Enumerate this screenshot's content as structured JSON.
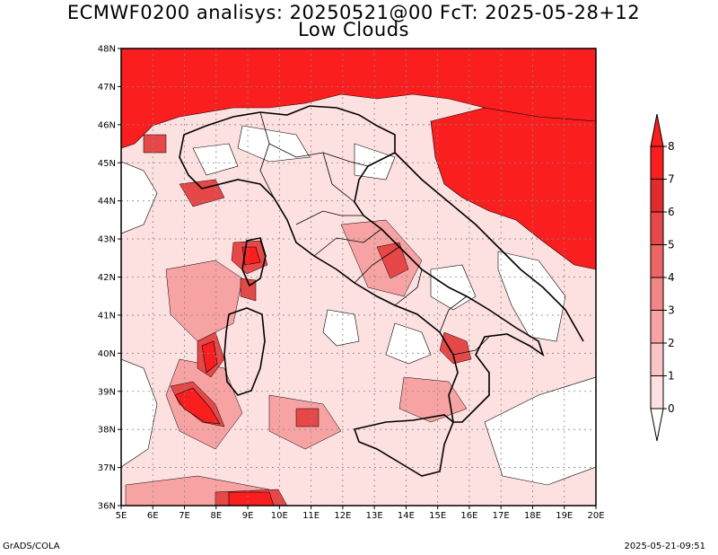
{
  "title_line1": "ECMWF0200 analisys: 20250521@00 FcT: 2025-05-28+12",
  "title_line2": "Low Clouds",
  "footer_left": "GrADS/COLA",
  "footer_right": "2025-05-21-09:51",
  "map": {
    "lon_range": [
      5,
      20
    ],
    "lat_range": [
      36,
      48
    ],
    "lon_labels": [
      "5E",
      "6E",
      "7E",
      "8E",
      "9E",
      "10E",
      "11E",
      "12E",
      "13E",
      "14E",
      "15E",
      "16E",
      "17E",
      "18E",
      "19E",
      "20E"
    ],
    "lat_labels": [
      "36N",
      "37N",
      "38N",
      "39N",
      "40N",
      "41N",
      "42N",
      "43N",
      "44N",
      "45N",
      "46N",
      "47N",
      "48N"
    ],
    "grid": true,
    "field": "Low Clouds",
    "units_levels": [
      0,
      1,
      2,
      3,
      4,
      5,
      6,
      7,
      8
    ]
  },
  "colorbar": {
    "labels": [
      "0",
      "1",
      "2",
      "3",
      "4",
      "5",
      "6",
      "7",
      "8"
    ],
    "colors": [
      "#fde0e0",
      "#fbc4c4",
      "#f7a3a3",
      "#f28585",
      "#ec6666",
      "#e64848",
      "#e02c2c",
      "#fa1e1e"
    ]
  },
  "palette": {
    "land_bg": "#fde0e0",
    "clear": "#ffffff",
    "heavy": "#fb1e1e"
  }
}
